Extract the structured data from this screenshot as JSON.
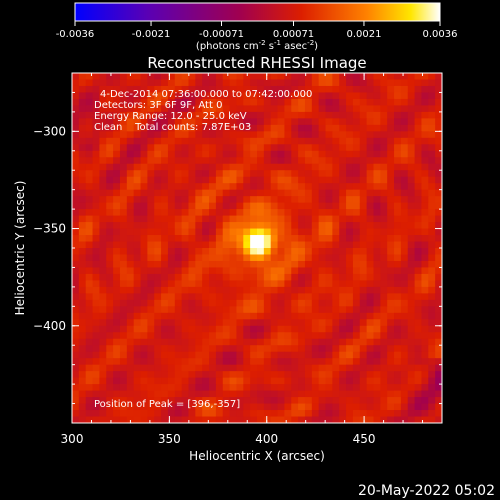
{
  "chart_data": {
    "type": "heatmap",
    "title": "Reconstructed RHESSI Image",
    "xlabel": "Heliocentric X (arcsec)",
    "ylabel": "Heliocentric Y (arcsec)",
    "xlim": [
      300,
      490
    ],
    "ylim": [
      -450,
      -270
    ],
    "x_ticks": [
      300,
      350,
      400,
      450
    ],
    "y_ticks": [
      -300,
      -350,
      -400
    ],
    "colorbar": {
      "ticks": [
        "-0.0036",
        "-0.0021",
        "-0.00071",
        "0.00071",
        "0.0021",
        "0.0036"
      ],
      "range": [
        -0.0036,
        0.0036
      ],
      "unit_base": "(photons cm",
      "unit_exp1": "-2",
      "unit_mid": " s",
      "unit_exp2": "-1",
      "unit_mid2": " asec",
      "unit_exp3": "-2",
      "unit_end": ")"
    },
    "annotations": [
      "4-Dec-2014 07:36:00.000 to 07:42:00.000",
      "Detectors: 3F 6F 9F, Att 0",
      "Energy Range: 12.0 - 25.0 keV",
      "Clean    Total counts: 7.87E+03"
    ],
    "peak_label": "Position of Peak = [396,-357]",
    "peak": [
      396,
      -357
    ],
    "grid": false
  },
  "timestamp": "20-May-2022 05:02",
  "colors": {
    "background": "#000000",
    "colormap": [
      "#0000ff",
      "#5a00b4",
      "#a00050",
      "#dc1e00",
      "#ff8200",
      "#ffe600",
      "#ffffff"
    ]
  }
}
